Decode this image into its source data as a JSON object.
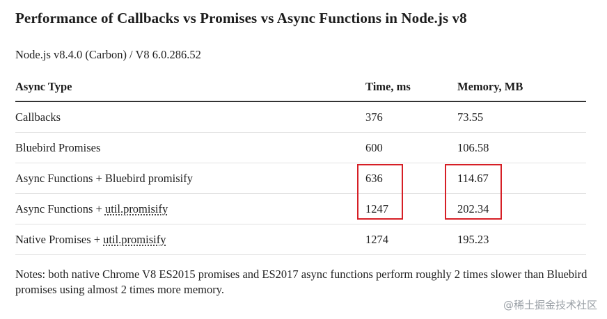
{
  "title": "Performance of Callbacks vs Promises vs Async Functions in Node.js v8",
  "subtitle": "Node.js v8.4.0 (Carbon) / V8 6.0.286.52",
  "table": {
    "headers": [
      "Async Type",
      "Time, ms",
      "Memory, MB"
    ],
    "rows": [
      {
        "type_prefix": "Callbacks",
        "type_link": "",
        "time": "376",
        "memory": "73.55"
      },
      {
        "type_prefix": "Bluebird Promises",
        "type_link": "",
        "time": "600",
        "memory": "106.58"
      },
      {
        "type_prefix": "Async Functions + Bluebird promisify",
        "type_link": "",
        "time": "636",
        "memory": "114.67"
      },
      {
        "type_prefix": "Async Functions + ",
        "type_link": "util.promisify",
        "time": "1247",
        "memory": "202.34"
      },
      {
        "type_prefix": "Native Promises + ",
        "type_link": "util.promisify",
        "time": "1274",
        "memory": "195.23"
      }
    ]
  },
  "highlight_color": "#d61f26",
  "notes": "Notes: both native Chrome V8 ES2015 promises and ES2017 async functions perform roughly 2 times slower than Bluebird promises using almost 2 times more memory.",
  "watermark": "@稀土掘金技术社区"
}
